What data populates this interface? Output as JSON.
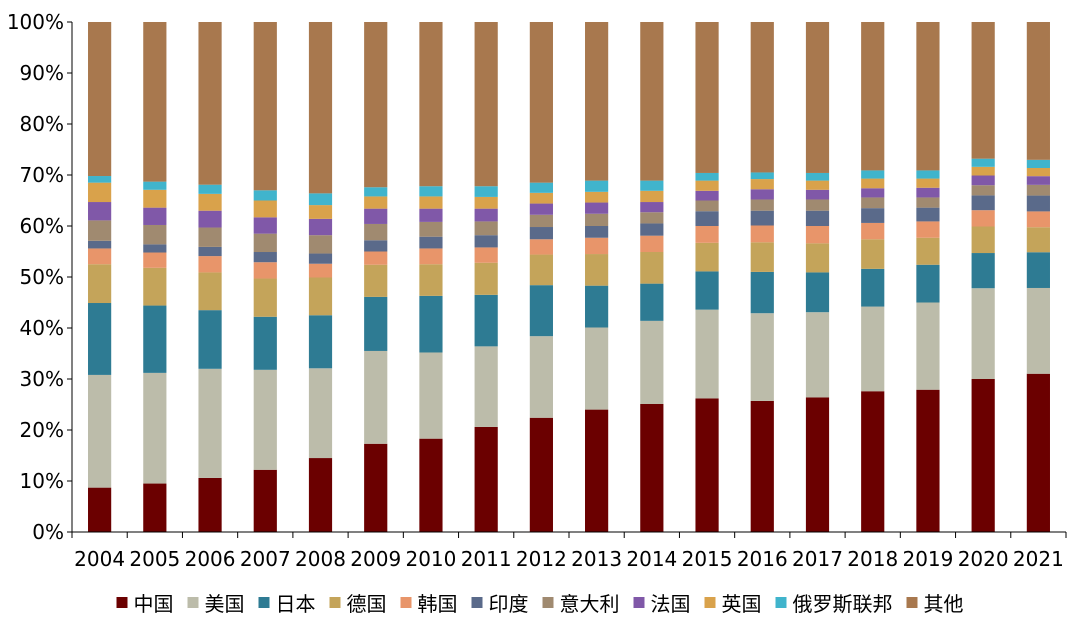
{
  "chart_data": {
    "type": "bar",
    "stacked": true,
    "percent": true,
    "title": "",
    "xlabel": "",
    "ylabel": "",
    "ylim": [
      0,
      100
    ],
    "ytick_labels": [
      "0%",
      "10%",
      "20%",
      "30%",
      "40%",
      "50%",
      "60%",
      "70%",
      "80%",
      "90%",
      "100%"
    ],
    "grid": false,
    "legend_position": "bottom",
    "categories": [
      "2004",
      "2005",
      "2006",
      "2007",
      "2008",
      "2009",
      "2010",
      "2011",
      "2012",
      "2013",
      "2014",
      "2015",
      "2016",
      "2017",
      "2018",
      "2019",
      "2020",
      "2021"
    ],
    "series": [
      {
        "name": "中国",
        "color": "#6b0000",
        "values": [
          8.7,
          9.5,
          10.6,
          12.2,
          14.5,
          17.3,
          18.3,
          20.6,
          22.4,
          24.0,
          25.1,
          26.2,
          25.7,
          26.4,
          27.6,
          27.9,
          30.0,
          31.0
        ]
      },
      {
        "name": "美国",
        "color": "#bcbcaa",
        "values": [
          22.1,
          21.7,
          21.4,
          19.6,
          17.6,
          18.2,
          16.9,
          15.8,
          16.0,
          16.1,
          16.3,
          17.4,
          17.2,
          16.7,
          16.6,
          17.1,
          17.8,
          16.8
        ]
      },
      {
        "name": "日本",
        "color": "#2e7b93",
        "values": [
          14.1,
          13.2,
          11.5,
          10.4,
          10.4,
          10.6,
          11.1,
          10.1,
          10.0,
          8.2,
          7.3,
          7.5,
          8.1,
          7.8,
          7.4,
          7.4,
          6.9,
          7.0
        ]
      },
      {
        "name": "德国",
        "color": "#c4a45a",
        "values": [
          7.6,
          7.4,
          7.4,
          7.5,
          7.4,
          6.3,
          6.2,
          6.3,
          6.0,
          6.2,
          6.2,
          5.6,
          5.8,
          5.7,
          5.8,
          5.3,
          5.2,
          4.9
        ]
      },
      {
        "name": "韩国",
        "color": "#e8956a",
        "values": [
          3.1,
          3.0,
          3.2,
          3.2,
          2.7,
          2.6,
          3.1,
          3.0,
          3.0,
          3.2,
          3.2,
          3.3,
          3.3,
          3.4,
          3.2,
          3.2,
          3.2,
          3.1
        ]
      },
      {
        "name": "印度",
        "color": "#5a6a8a",
        "values": [
          1.5,
          1.6,
          1.8,
          2.0,
          2.0,
          2.2,
          2.3,
          2.4,
          2.4,
          2.3,
          2.4,
          2.9,
          2.9,
          3.0,
          2.9,
          2.7,
          2.9,
          3.1
        ]
      },
      {
        "name": "意大利",
        "color": "#a08a70",
        "values": [
          4.0,
          3.8,
          3.8,
          3.6,
          3.6,
          3.2,
          2.9,
          2.7,
          2.4,
          2.4,
          2.2,
          2.1,
          2.2,
          2.2,
          2.1,
          2.0,
          2.0,
          2.1
        ]
      },
      {
        "name": "法国",
        "color": "#8058a8",
        "values": [
          3.6,
          3.4,
          3.3,
          3.2,
          3.2,
          3.0,
          2.6,
          2.5,
          2.2,
          2.2,
          2.0,
          1.9,
          2.0,
          1.9,
          1.8,
          1.9,
          1.9,
          1.7
        ]
      },
      {
        "name": "英国",
        "color": "#d9a24b",
        "values": [
          3.8,
          3.5,
          3.3,
          3.3,
          2.7,
          2.4,
          2.4,
          2.3,
          2.1,
          2.1,
          2.2,
          2.0,
          2.0,
          1.8,
          1.9,
          1.8,
          1.7,
          1.6
        ]
      },
      {
        "name": "俄罗斯联邦",
        "color": "#40b4cc",
        "values": [
          1.3,
          1.6,
          1.8,
          2.0,
          2.3,
          1.8,
          2.0,
          2.1,
          2.0,
          2.2,
          2.0,
          1.5,
          1.3,
          1.5,
          1.6,
          1.6,
          1.6,
          1.6
        ]
      },
      {
        "name": "其他",
        "color": "#a8784e",
        "values": [
          30.2,
          31.3,
          31.9,
          33.0,
          33.6,
          32.4,
          32.2,
          32.2,
          31.5,
          31.1,
          31.1,
          29.6,
          29.5,
          29.6,
          29.1,
          29.1,
          26.8,
          27.0
        ]
      }
    ]
  }
}
